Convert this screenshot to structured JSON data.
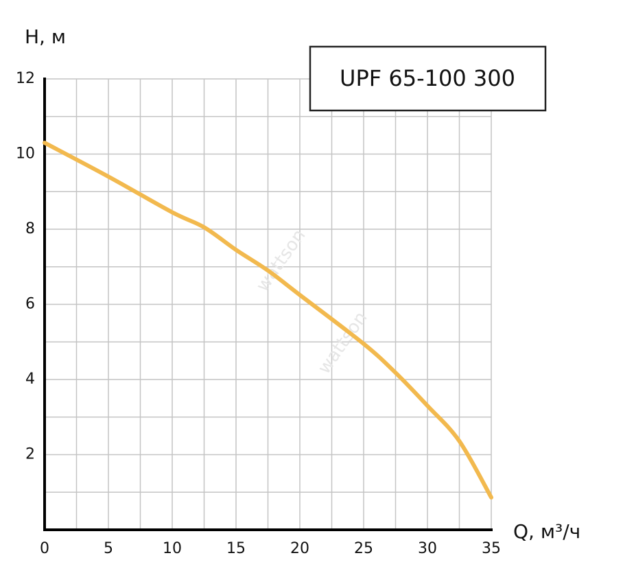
{
  "chart_data": {
    "type": "line",
    "title": "UPF 65-100 300",
    "x_label": "Q, м³/ч",
    "y_label": "H, м",
    "watermark": [
      "wattson",
      "wattson"
    ],
    "x": [
      0,
      5,
      10,
      12.5,
      15,
      17.5,
      20,
      25,
      27.5,
      30,
      32.5,
      35
    ],
    "series": [
      {
        "name": "UPF 65-100 300",
        "color": "#f2b94e",
        "values": [
          10.3,
          9.4,
          8.45,
          8.05,
          7.45,
          6.9,
          6.25,
          4.95,
          4.18,
          3.3,
          2.36,
          0.86
        ]
      }
    ],
    "xlim": [
      0,
      35
    ],
    "ylim": [
      0,
      12
    ],
    "xticks": [
      0,
      5,
      10,
      15,
      20,
      25,
      30,
      35
    ],
    "yticks": [
      2,
      4,
      6,
      8,
      10,
      12
    ],
    "x_minor_grid": [
      2.5,
      7.5,
      12.5,
      17.5,
      22.5,
      27.5,
      32.5
    ],
    "y_minor_grid": [
      1,
      3,
      5,
      7,
      9,
      11
    ],
    "grid": true
  }
}
